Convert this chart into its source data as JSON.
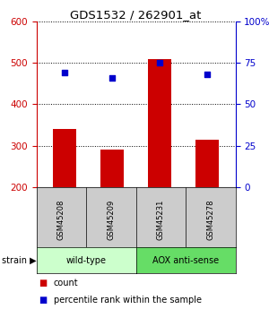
{
  "title": "GDS1532 / 262901_at",
  "samples": [
    "GSM45208",
    "GSM45209",
    "GSM45231",
    "GSM45278"
  ],
  "counts": [
    340,
    290,
    510,
    315
  ],
  "percentiles": [
    69,
    66,
    75,
    68
  ],
  "ylim_left": [
    200,
    600
  ],
  "ylim_right": [
    0,
    100
  ],
  "yticks_left": [
    200,
    300,
    400,
    500,
    600
  ],
  "yticks_right": [
    0,
    25,
    50,
    75,
    100
  ],
  "groups": [
    {
      "label": "wild-type",
      "color": "#ccffcc",
      "samples": [
        0,
        1
      ]
    },
    {
      "label": "AOX anti-sense",
      "color": "#66dd66",
      "samples": [
        2,
        3
      ]
    }
  ],
  "bar_color": "#cc0000",
  "dot_color": "#0000cc",
  "bar_width": 0.5,
  "left_axis_color": "#cc0000",
  "right_axis_color": "#0000cc",
  "sample_box_color": "#cccccc",
  "strain_label": "strain",
  "legend_count_label": "count",
  "legend_pct_label": "percentile rank within the sample"
}
